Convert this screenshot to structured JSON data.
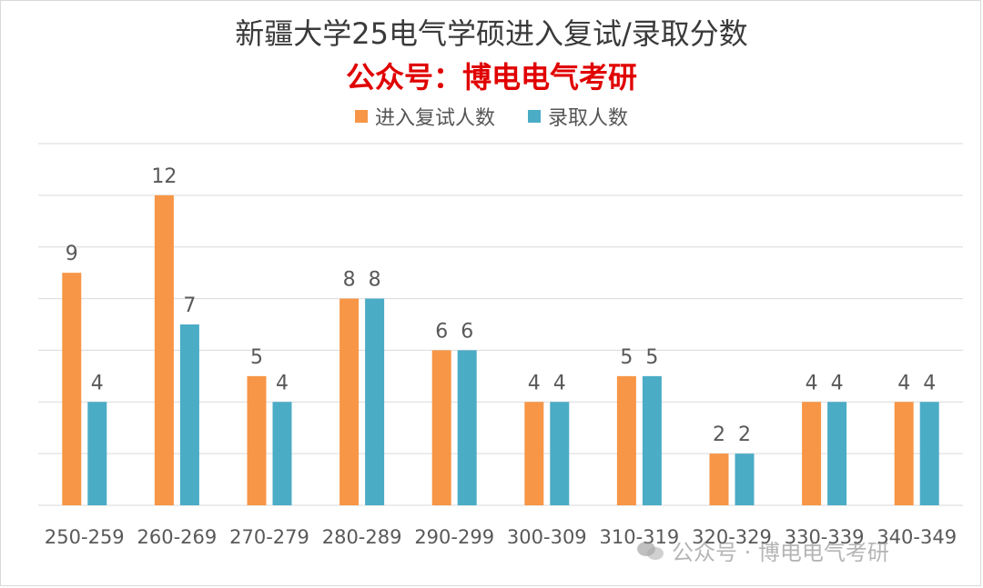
{
  "title": "新疆大学25电气学硕进入复试/录取分数",
  "subtitle": "公众号：博电电气考研",
  "watermark": "公众号 · 博电电气考研",
  "colors": {
    "series1": "#F79646",
    "series2": "#4BACC6",
    "grid": "#d9d9d9",
    "text": "#595959"
  },
  "chart_data": {
    "type": "bar",
    "title": "新疆大学25电气学硕进入复试/录取分数",
    "subtitle": "公众号：博电电气考研",
    "categories": [
      "250-259",
      "260-269",
      "270-279",
      "280-289",
      "290-299",
      "300-309",
      "310-319",
      "320-329",
      "330-339",
      "340-349"
    ],
    "series": [
      {
        "name": "进入复试人数",
        "values": [
          9,
          12,
          5,
          8,
          6,
          4,
          5,
          2,
          4,
          4
        ]
      },
      {
        "name": "录取人数",
        "values": [
          4,
          7,
          4,
          8,
          6,
          4,
          5,
          2,
          4,
          4
        ]
      }
    ],
    "ylim": [
      0,
      14
    ],
    "grid": true,
    "legend": "top"
  }
}
